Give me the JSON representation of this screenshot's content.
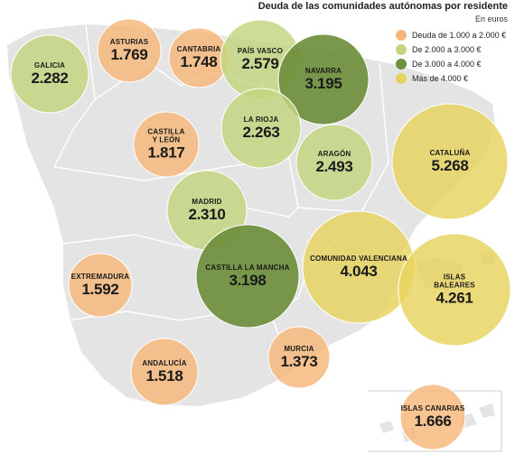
{
  "title": "Deuda de las comunidades autónomas por residente",
  "unit": "En euros",
  "colors": {
    "range1": "#f6b87a",
    "range2": "#c3d67e",
    "range3": "#6e8f3c",
    "range4": "#e6d35e",
    "land": "#e4e4e4",
    "borders": "#ffffff"
  },
  "legend": [
    {
      "label": "Deuda de 1.000 a 2.000 €",
      "range": "range1"
    },
    {
      "label": "De 2.000 a 3.000 €",
      "range": "range2"
    },
    {
      "label": "De 3.000 a 4.000 €",
      "range": "range3"
    },
    {
      "label": "Más de 4.000 €",
      "range": "range4"
    }
  ],
  "chart_data": {
    "type": "bubble-map",
    "title": "Deuda de las comunidades autónomas por residente",
    "unit": "En euros",
    "regions": [
      {
        "name": "GALICIA",
        "value": 2282,
        "display": "2.282",
        "range": "range2"
      },
      {
        "name": "ASTURIAS",
        "value": 1769,
        "display": "1.769",
        "range": "range1"
      },
      {
        "name": "CANTABRIA",
        "value": 1748,
        "display": "1.748",
        "range": "range1"
      },
      {
        "name": "PAÍS VASCO",
        "value": 2579,
        "display": "2.579",
        "range": "range2"
      },
      {
        "name": "NAVARRA",
        "value": 3195,
        "display": "3.195",
        "range": "range3"
      },
      {
        "name": "LA RIOJA",
        "value": 2263,
        "display": "2.263",
        "range": "range2"
      },
      {
        "name": "CASTILLA\nY LEÓN",
        "value": 1817,
        "display": "1.817",
        "range": "range1"
      },
      {
        "name": "ARAGÓN",
        "value": 2493,
        "display": "2.493",
        "range": "range2"
      },
      {
        "name": "CATALUÑA",
        "value": 5268,
        "display": "5.268",
        "range": "range4"
      },
      {
        "name": "MADRID",
        "value": 2310,
        "display": "2.310",
        "range": "range2"
      },
      {
        "name": "CASTILLA LA MANCHA",
        "value": 3198,
        "display": "3.198",
        "range": "range3"
      },
      {
        "name": "COMUNIDAD VALENCIANA",
        "value": 4043,
        "display": "4.043",
        "range": "range4"
      },
      {
        "name": "ISLAS BALEARES",
        "value": 4261,
        "display": "4.261",
        "range": "range4"
      },
      {
        "name": "EXTREMADURA",
        "value": 1592,
        "display": "1.592",
        "range": "range1"
      },
      {
        "name": "ANDALUCÍA",
        "value": 1518,
        "display": "1.518",
        "range": "range1"
      },
      {
        "name": "MURCIA",
        "value": 1373,
        "display": "1.373",
        "range": "range1"
      },
      {
        "name": "ISLAS CANARIAS",
        "value": 1666,
        "display": "1.666",
        "range": "range1"
      }
    ]
  }
}
